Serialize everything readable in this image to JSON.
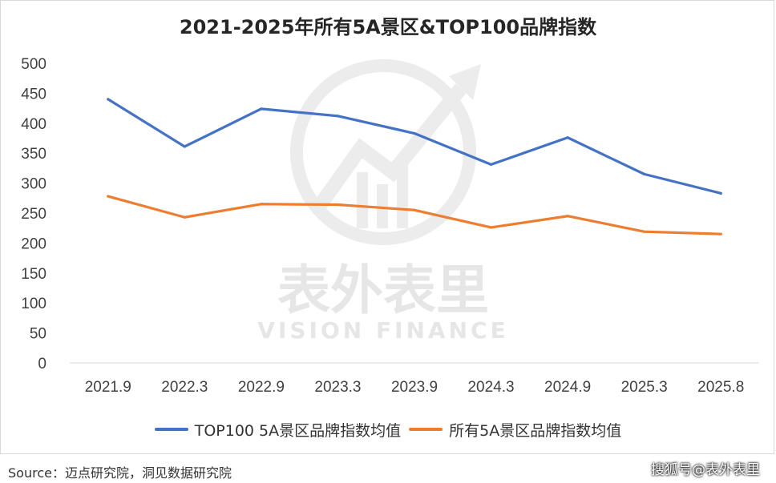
{
  "chart_data": {
    "type": "line",
    "title": "2021-2025年所有5A景区&TOP100品牌指数",
    "categories": [
      "2021.9",
      "2022.3",
      "2022.9",
      "2023.3",
      "2023.9",
      "2024.3",
      "2024.9",
      "2025.3",
      "2025.8"
    ],
    "series": [
      {
        "name": "TOP100 5A景区品牌指数均值",
        "color": "#4472C4",
        "values": [
          440,
          361,
          424,
          412,
          383,
          331,
          376,
          315,
          283
        ]
      },
      {
        "name": "所有5A景区品牌指数均值",
        "color": "#ED7D31",
        "values": [
          278,
          243,
          265,
          264,
          255,
          226,
          245,
          219,
          215
        ]
      }
    ],
    "ylim": [
      0,
      500
    ],
    "yticks": [
      0,
      50,
      100,
      150,
      200,
      250,
      300,
      350,
      400,
      450,
      500
    ],
    "grid": false,
    "legend_position": "bottom"
  },
  "watermark": {
    "cn": "表外表里",
    "en": "VISION FINANCE",
    "color": "#e3e3e3"
  },
  "footer": {
    "source": "Source：迈点研究院，洞见数据研究院",
    "brand": "搜狐号@表外表里"
  }
}
